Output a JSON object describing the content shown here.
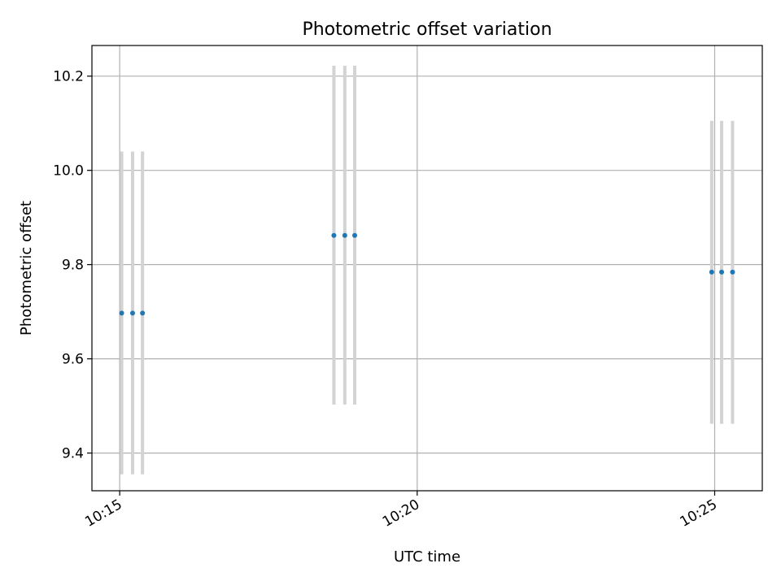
{
  "chart_data": {
    "type": "scatter",
    "title": "Photometric offset variation",
    "xlabel": "UTC time",
    "ylabel": "Photometric offset",
    "x_tick_labels": [
      "10:15",
      "10:20",
      "10:25"
    ],
    "x_ticks": [
      "10:15",
      "10:20",
      "10:25"
    ],
    "y_tick_labels": [
      "9.4",
      "9.6",
      "9.8",
      "10.0",
      "10.2"
    ],
    "y_ticks": [
      9.4,
      9.6,
      9.8,
      10.0,
      10.2
    ],
    "xlim": [
      "10:14:32",
      "10:25:48"
    ],
    "ylim": [
      9.32,
      10.265
    ],
    "grid": true,
    "series": [
      {
        "points": [
          {
            "x": "10:15:02",
            "y": 9.697,
            "yerr_low": 9.355,
            "yerr_high": 10.04
          },
          {
            "x": "10:15:13",
            "y": 9.697,
            "yerr_low": 9.355,
            "yerr_high": 10.04
          },
          {
            "x": "10:15:23",
            "y": 9.697,
            "yerr_low": 9.355,
            "yerr_high": 10.04
          },
          {
            "x": "10:18:36",
            "y": 9.862,
            "yerr_low": 9.503,
            "yerr_high": 10.222
          },
          {
            "x": "10:18:47",
            "y": 9.862,
            "yerr_low": 9.503,
            "yerr_high": 10.222
          },
          {
            "x": "10:18:57",
            "y": 9.862,
            "yerr_low": 9.503,
            "yerr_high": 10.222
          },
          {
            "x": "10:24:57",
            "y": 9.784,
            "yerr_low": 9.462,
            "yerr_high": 10.105
          },
          {
            "x": "10:25:07",
            "y": 9.784,
            "yerr_low": 9.462,
            "yerr_high": 10.105
          },
          {
            "x": "10:25:18",
            "y": 9.784,
            "yerr_low": 9.462,
            "yerr_high": 10.105
          }
        ]
      }
    ],
    "colors": {
      "point": "#1f77b4",
      "errorbar": "#d3d3d3",
      "grid": "#b0b0b0",
      "axes": "#000000"
    }
  }
}
